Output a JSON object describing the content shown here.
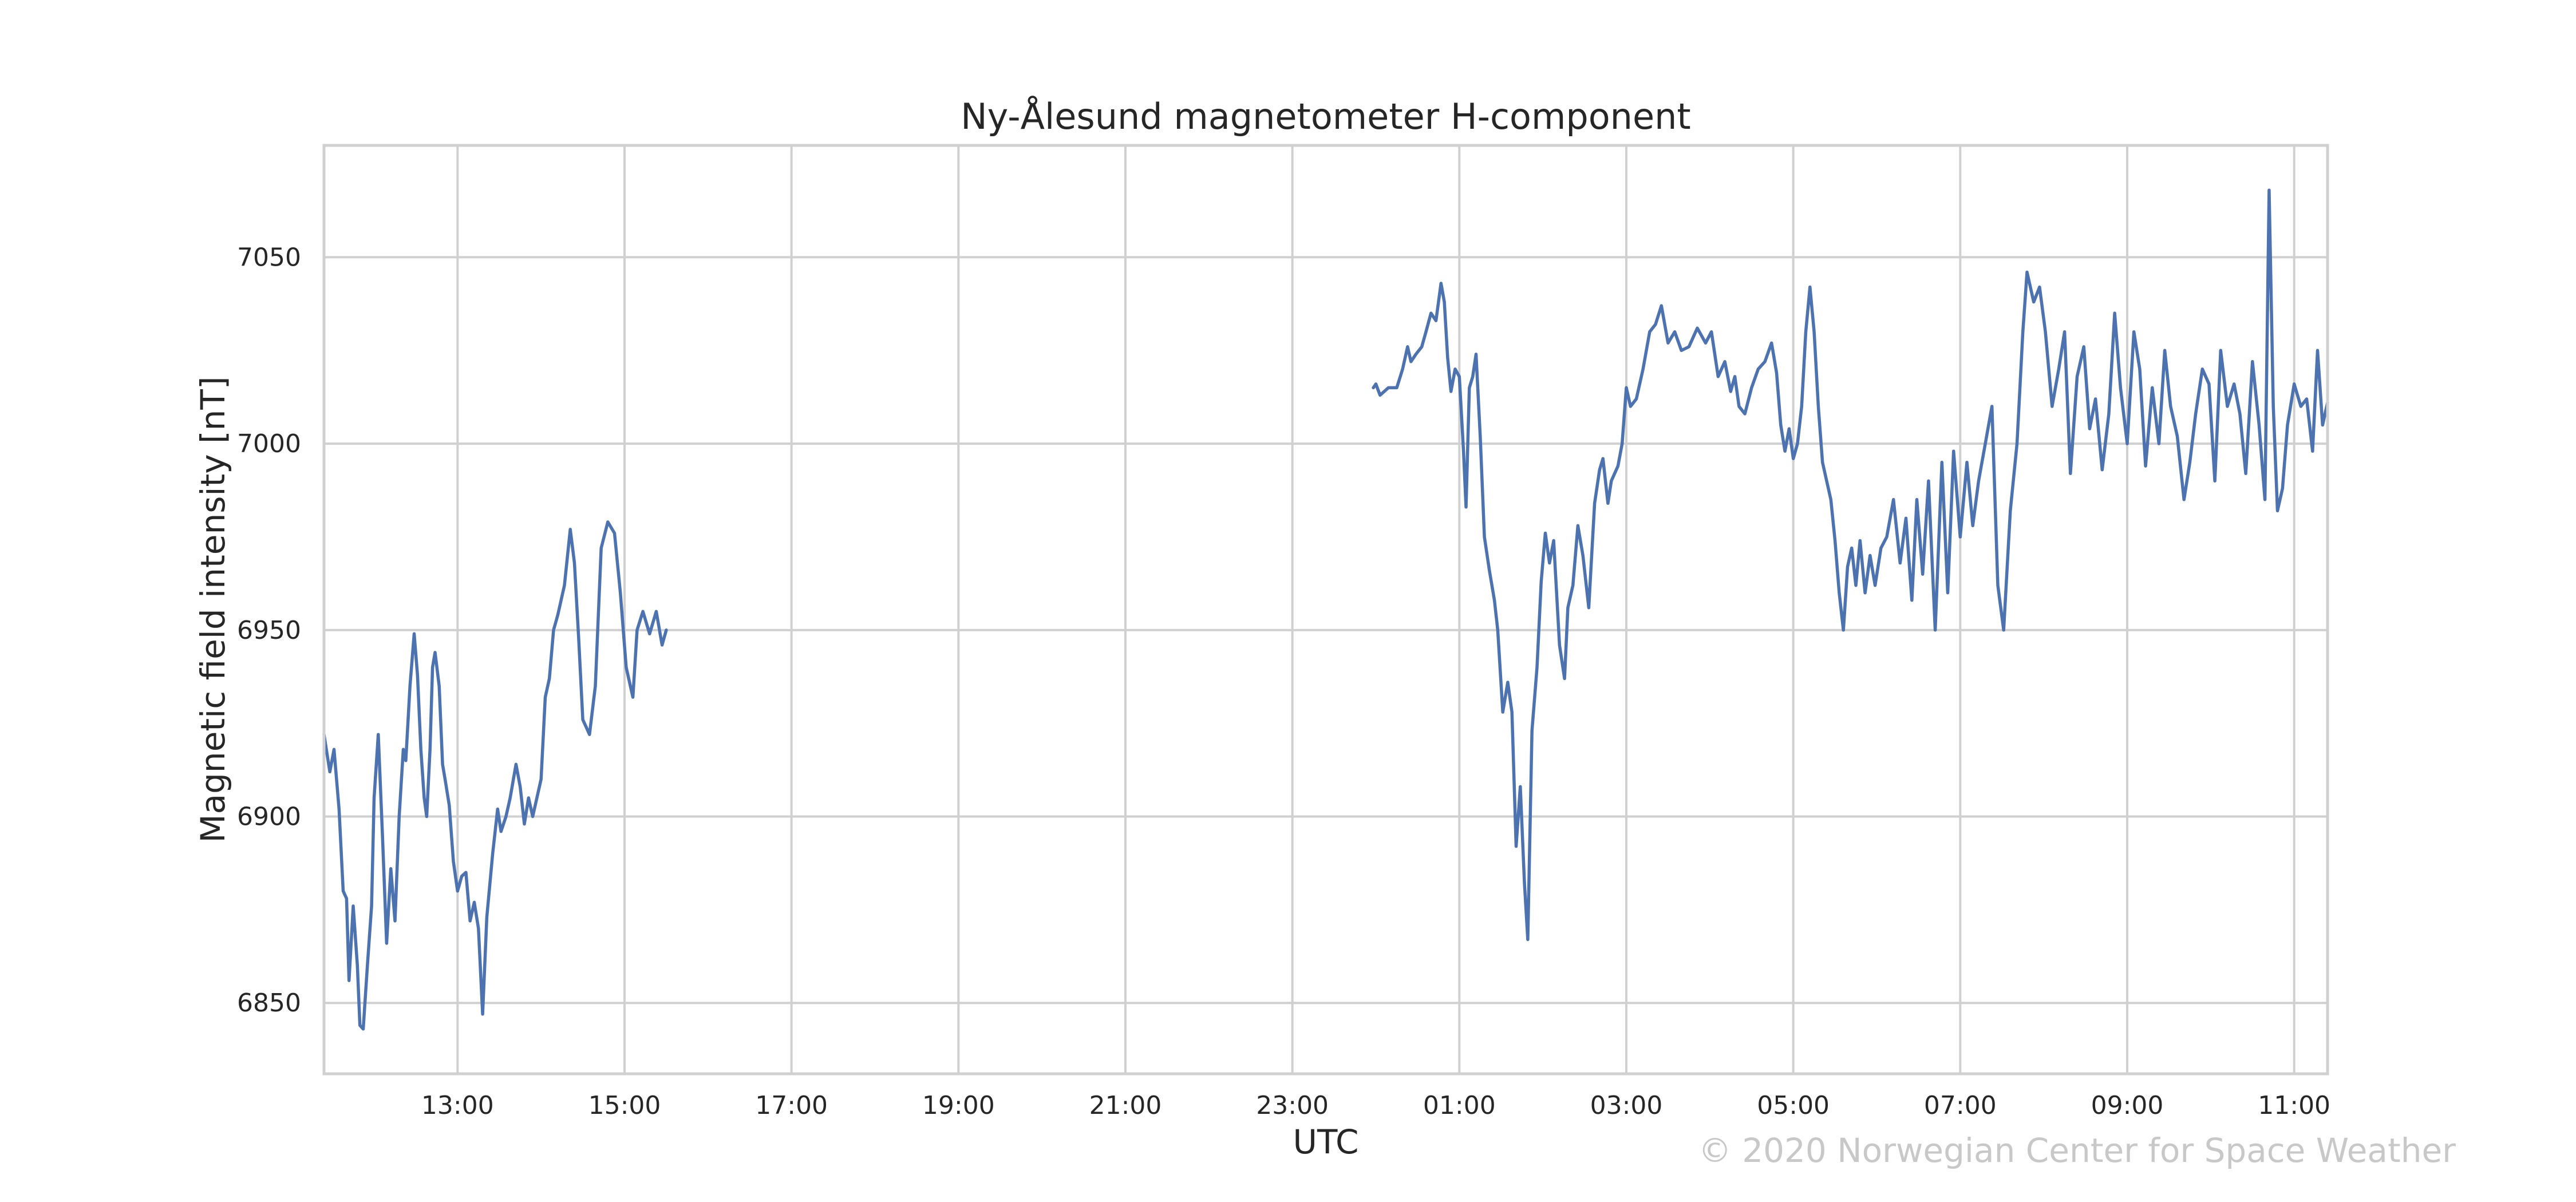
{
  "chart_data": {
    "type": "line",
    "title": "Ny-Ålesund magnetometer H-component",
    "xlabel": "UTC",
    "ylabel": "Magnetic field intensity [nT]",
    "x_unit": "hours since 11:24 UTC (day 1)",
    "xlim": [
      11.4,
      35.4
    ],
    "ylim": [
      6831,
      7080
    ],
    "x_ticks": [
      {
        "x": 13,
        "label": "13:00"
      },
      {
        "x": 15,
        "label": "15:00"
      },
      {
        "x": 17,
        "label": "17:00"
      },
      {
        "x": 19,
        "label": "19:00"
      },
      {
        "x": 21,
        "label": "21:00"
      },
      {
        "x": 23,
        "label": "23:00"
      },
      {
        "x": 25,
        "label": "01:00"
      },
      {
        "x": 27,
        "label": "03:00"
      },
      {
        "x": 29,
        "label": "05:00"
      },
      {
        "x": 31,
        "label": "07:00"
      },
      {
        "x": 33,
        "label": "09:00"
      },
      {
        "x": 35,
        "label": "11:00"
      }
    ],
    "y_ticks": [
      {
        "y": 6850,
        "label": "6850"
      },
      {
        "y": 6900,
        "label": "6900"
      },
      {
        "y": 6950,
        "label": "6950"
      },
      {
        "y": 7000,
        "label": "7000"
      },
      {
        "y": 7050,
        "label": "7050"
      }
    ],
    "grid": true,
    "color": "#4c72b0",
    "series": [
      {
        "segments": [
          [
            [
              11.4,
              6922
            ],
            [
              11.47,
              6912
            ],
            [
              11.52,
              6918
            ],
            [
              11.58,
              6902
            ],
            [
              11.63,
              6880
            ],
            [
              11.67,
              6878
            ],
            [
              11.7,
              6856
            ],
            [
              11.75,
              6876
            ],
            [
              11.8,
              6860
            ],
            [
              11.83,
              6844
            ],
            [
              11.87,
              6843
            ],
            [
              11.92,
              6860
            ],
            [
              11.97,
              6876
            ],
            [
              12.0,
              6905
            ],
            [
              12.05,
              6922
            ],
            [
              12.1,
              6895
            ],
            [
              12.15,
              6866
            ],
            [
              12.2,
              6886
            ],
            [
              12.25,
              6872
            ],
            [
              12.3,
              6900
            ],
            [
              12.35,
              6918
            ],
            [
              12.38,
              6915
            ],
            [
              12.43,
              6935
            ],
            [
              12.48,
              6949
            ],
            [
              12.52,
              6938
            ],
            [
              12.56,
              6918
            ],
            [
              12.6,
              6905
            ],
            [
              12.63,
              6900
            ],
            [
              12.67,
              6918
            ],
            [
              12.7,
              6940
            ],
            [
              12.73,
              6944
            ],
            [
              12.78,
              6935
            ],
            [
              12.82,
              6914
            ],
            [
              12.85,
              6910
            ],
            [
              12.9,
              6903
            ],
            [
              12.95,
              6888
            ],
            [
              13.0,
              6880
            ],
            [
              13.05,
              6884
            ],
            [
              13.1,
              6885
            ],
            [
              13.15,
              6872
            ],
            [
              13.2,
              6877
            ],
            [
              13.25,
              6870
            ],
            [
              13.3,
              6847
            ],
            [
              13.35,
              6873
            ],
            [
              13.42,
              6890
            ],
            [
              13.48,
              6902
            ],
            [
              13.52,
              6896
            ],
            [
              13.58,
              6900
            ],
            [
              13.63,
              6905
            ],
            [
              13.7,
              6914
            ],
            [
              13.75,
              6908
            ],
            [
              13.8,
              6898
            ],
            [
              13.85,
              6905
            ],
            [
              13.9,
              6900
            ],
            [
              14.0,
              6910
            ],
            [
              14.05,
              6932
            ],
            [
              14.1,
              6937
            ],
            [
              14.15,
              6950
            ],
            [
              14.2,
              6954
            ],
            [
              14.28,
              6962
            ],
            [
              14.35,
              6977
            ],
            [
              14.4,
              6968
            ],
            [
              14.45,
              6948
            ],
            [
              14.5,
              6926
            ],
            [
              14.58,
              6922
            ],
            [
              14.65,
              6935
            ],
            [
              14.72,
              6972
            ],
            [
              14.8,
              6979
            ],
            [
              14.88,
              6976
            ],
            [
              14.95,
              6960
            ],
            [
              15.02,
              6940
            ],
            [
              15.1,
              6932
            ],
            [
              15.15,
              6950
            ],
            [
              15.22,
              6955
            ],
            [
              15.3,
              6949
            ],
            [
              15.38,
              6955
            ],
            [
              15.45,
              6946
            ],
            [
              15.5,
              6950
            ]
          ],
          [
            [
              23.97,
              7015
            ],
            [
              24.0,
              7016
            ],
            [
              24.05,
              7013
            ],
            [
              24.15,
              7015
            ],
            [
              24.25,
              7015
            ],
            [
              24.32,
              7020
            ],
            [
              24.38,
              7026
            ],
            [
              24.42,
              7022
            ],
            [
              24.48,
              7024
            ],
            [
              24.55,
              7026
            ],
            [
              24.6,
              7030
            ],
            [
              24.66,
              7035
            ],
            [
              24.72,
              7033
            ],
            [
              24.78,
              7043
            ],
            [
              24.82,
              7038
            ],
            [
              24.86,
              7023
            ],
            [
              24.9,
              7014
            ],
            [
              24.95,
              7020
            ],
            [
              25.0,
              7018
            ],
            [
              25.05,
              6998
            ],
            [
              25.08,
              6983
            ],
            [
              25.12,
              7015
            ],
            [
              25.16,
              7018
            ],
            [
              25.2,
              7024
            ],
            [
              25.25,
              7002
            ],
            [
              25.3,
              6975
            ],
            [
              25.36,
              6966
            ],
            [
              25.42,
              6958
            ],
            [
              25.46,
              6950
            ],
            [
              25.52,
              6928
            ],
            [
              25.58,
              6936
            ],
            [
              25.63,
              6928
            ],
            [
              25.68,
              6892
            ],
            [
              25.73,
              6908
            ],
            [
              25.78,
              6882
            ],
            [
              25.82,
              6867
            ],
            [
              25.87,
              6923
            ],
            [
              25.93,
              6940
            ],
            [
              25.98,
              6963
            ],
            [
              26.03,
              6976
            ],
            [
              26.08,
              6968
            ],
            [
              26.13,
              6974
            ],
            [
              26.2,
              6946
            ],
            [
              26.26,
              6937
            ],
            [
              26.3,
              6956
            ],
            [
              26.36,
              6962
            ],
            [
              26.42,
              6978
            ],
            [
              26.48,
              6970
            ],
            [
              26.55,
              6956
            ],
            [
              26.62,
              6984
            ],
            [
              26.68,
              6993
            ],
            [
              26.72,
              6996
            ],
            [
              26.78,
              6984
            ],
            [
              26.82,
              6990
            ],
            [
              26.9,
              6994
            ],
            [
              26.95,
              7000
            ],
            [
              27.0,
              7015
            ],
            [
              27.05,
              7010
            ],
            [
              27.12,
              7012
            ],
            [
              27.2,
              7020
            ],
            [
              27.28,
              7030
            ],
            [
              27.35,
              7032
            ],
            [
              27.42,
              7037
            ],
            [
              27.5,
              7027
            ],
            [
              27.58,
              7030
            ],
            [
              27.66,
              7025
            ],
            [
              27.75,
              7026
            ],
            [
              27.85,
              7031
            ],
            [
              27.95,
              7027
            ],
            [
              28.02,
              7030
            ],
            [
              28.1,
              7018
            ],
            [
              28.18,
              7022
            ],
            [
              28.25,
              7014
            ],
            [
              28.3,
              7018
            ],
            [
              28.35,
              7010
            ],
            [
              28.42,
              7008
            ],
            [
              28.5,
              7015
            ],
            [
              28.58,
              7020
            ],
            [
              28.66,
              7022
            ],
            [
              28.74,
              7027
            ],
            [
              28.8,
              7019
            ],
            [
              28.85,
              7005
            ],
            [
              28.9,
              6998
            ],
            [
              28.95,
              7004
            ],
            [
              29.0,
              6996
            ],
            [
              29.05,
              7000
            ],
            [
              29.1,
              7010
            ],
            [
              29.15,
              7030
            ],
            [
              29.2,
              7042
            ],
            [
              29.25,
              7030
            ],
            [
              29.3,
              7010
            ],
            [
              29.35,
              6995
            ],
            [
              29.4,
              6990
            ],
            [
              29.45,
              6985
            ],
            [
              29.5,
              6974
            ],
            [
              29.55,
              6960
            ],
            [
              29.6,
              6950
            ],
            [
              29.65,
              6967
            ],
            [
              29.7,
              6972
            ],
            [
              29.75,
              6962
            ],
            [
              29.8,
              6974
            ],
            [
              29.86,
              6960
            ],
            [
              29.92,
              6970
            ],
            [
              29.98,
              6962
            ],
            [
              30.05,
              6972
            ],
            [
              30.12,
              6975
            ],
            [
              30.2,
              6985
            ],
            [
              30.28,
              6968
            ],
            [
              30.35,
              6980
            ],
            [
              30.42,
              6958
            ],
            [
              30.48,
              6985
            ],
            [
              30.55,
              6965
            ],
            [
              30.62,
              6990
            ],
            [
              30.7,
              6950
            ],
            [
              30.78,
              6995
            ],
            [
              30.85,
              6960
            ],
            [
              30.92,
              6998
            ],
            [
              31.0,
              6975
            ],
            [
              31.08,
              6995
            ],
            [
              31.15,
              6978
            ],
            [
              31.22,
              6990
            ],
            [
              31.3,
              7000
            ],
            [
              31.38,
              7010
            ],
            [
              31.45,
              6962
            ],
            [
              31.52,
              6950
            ],
            [
              31.6,
              6982
            ],
            [
              31.68,
              7000
            ],
            [
              31.75,
              7030
            ],
            [
              31.8,
              7046
            ],
            [
              31.88,
              7038
            ],
            [
              31.95,
              7042
            ],
            [
              32.02,
              7030
            ],
            [
              32.1,
              7010
            ],
            [
              32.18,
              7020
            ],
            [
              32.25,
              7030
            ],
            [
              32.32,
              6992
            ],
            [
              32.4,
              7018
            ],
            [
              32.48,
              7026
            ],
            [
              32.55,
              7004
            ],
            [
              32.62,
              7012
            ],
            [
              32.7,
              6993
            ],
            [
              32.78,
              7008
            ],
            [
              32.85,
              7035
            ],
            [
              32.92,
              7015
            ],
            [
              33.0,
              7000
            ],
            [
              33.08,
              7030
            ],
            [
              33.15,
              7020
            ],
            [
              33.22,
              6994
            ],
            [
              33.3,
              7015
            ],
            [
              33.38,
              7000
            ],
            [
              33.45,
              7025
            ],
            [
              33.52,
              7010
            ],
            [
              33.6,
              7002
            ],
            [
              33.68,
              6985
            ],
            [
              33.75,
              6995
            ],
            [
              33.82,
              7008
            ],
            [
              33.9,
              7020
            ],
            [
              33.98,
              7016
            ],
            [
              34.05,
              6990
            ],
            [
              34.12,
              7025
            ],
            [
              34.2,
              7010
            ],
            [
              34.28,
              7016
            ],
            [
              34.35,
              7008
            ],
            [
              34.42,
              6992
            ],
            [
              34.5,
              7022
            ],
            [
              34.58,
              7005
            ],
            [
              34.65,
              6985
            ],
            [
              34.7,
              7068
            ],
            [
              34.75,
              7010
            ],
            [
              34.8,
              6982
            ],
            [
              34.86,
              6988
            ],
            [
              34.92,
              7005
            ],
            [
              35.0,
              7016
            ],
            [
              35.08,
              7010
            ],
            [
              35.15,
              7012
            ],
            [
              35.22,
              6998
            ],
            [
              35.28,
              7025
            ],
            [
              35.34,
              7005
            ],
            [
              35.4,
              7011
            ]
          ]
        ]
      }
    ]
  },
  "credit": "© 2020 Norwegian Center for Space Weather"
}
